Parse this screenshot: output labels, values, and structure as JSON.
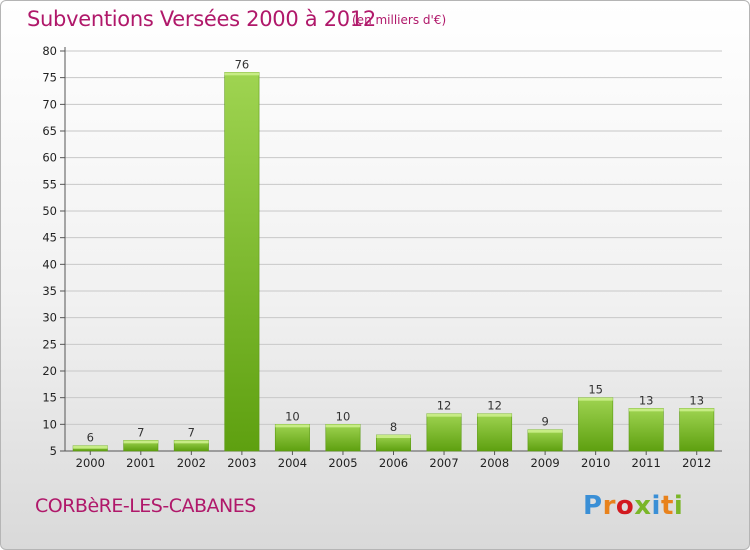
{
  "header": {
    "title": "Subventions Versées 2000 à 2012",
    "subtitle": "(en milliers d'€)"
  },
  "footer": {
    "commune": "CORBèRE-LES-CABANES",
    "brand": "Proxiti"
  },
  "colors": {
    "bar_light": "#9fd451",
    "bar_dark": "#5ea010",
    "title": "#b0186a",
    "grid": "#c8c8c8",
    "logo": [
      "#3a8fd6",
      "#e8821c",
      "#d2191f",
      "#7ab628",
      "#3a8fd6",
      "#e8821c",
      "#7ab628"
    ]
  },
  "chart_data": {
    "type": "bar",
    "title": "Subventions Versées 2000 à 2012",
    "subtitle": "(en milliers d'€)",
    "xlabel": "",
    "ylabel": "",
    "categories": [
      "2000",
      "2001",
      "2002",
      "2003",
      "2004",
      "2005",
      "2006",
      "2007",
      "2008",
      "2009",
      "2010",
      "2011",
      "2012"
    ],
    "values": [
      6,
      7,
      7,
      76,
      10,
      10,
      8,
      12,
      12,
      9,
      15,
      13,
      13
    ],
    "ylim": [
      5,
      80
    ],
    "yticks": [
      5,
      10,
      15,
      20,
      25,
      30,
      35,
      40,
      45,
      50,
      55,
      60,
      65,
      70,
      75,
      80
    ],
    "grid": "horizontal",
    "data_labels": true
  }
}
